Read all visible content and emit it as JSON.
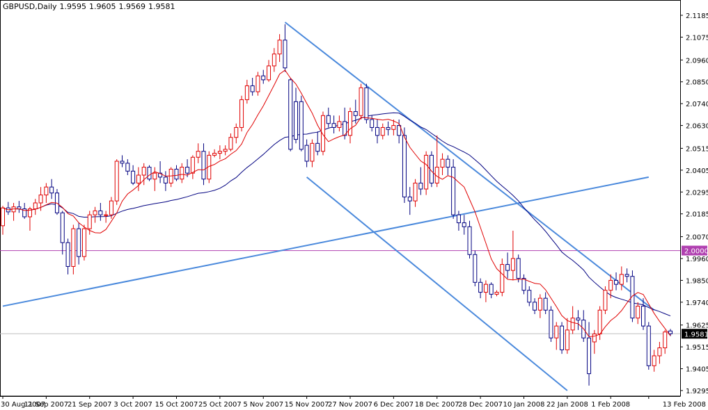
{
  "header": {
    "symbol_timeframe": "GBPUSD,Daily",
    "ohlc": [
      "1.9595",
      "1.9605",
      "1.9569",
      "1.9581"
    ]
  },
  "colors": {
    "bull_candle": "#e00000",
    "bear_candle": "#000080",
    "fast_ma": "#e00000",
    "slow_ma": "#000080",
    "trendline": "#4a89dc",
    "level_line": "#b040b0",
    "price_marker_bg": "#000000",
    "level_marker_bg": "#b040b0",
    "gridline": "#c0c0c0"
  },
  "chart_data": {
    "type": "candlestick",
    "ylim": [
      1.9295,
      2.1185
    ],
    "y_ticks": [
      "2.1185",
      "2.1075",
      "2.0960",
      "2.0850",
      "2.0740",
      "2.0630",
      "2.0515",
      "2.0405",
      "2.0295",
      "2.0185",
      "2.0070",
      "1.9960",
      "1.9850",
      "1.9740",
      "1.9625",
      "1.9515",
      "1.9405",
      "1.9295"
    ],
    "x_ticks": [
      "30 Aug 2007",
      "11 Sep 2007",
      "21 Sep 2007",
      "3 Oct 2007",
      "15 Oct 2007",
      "25 Oct 2007",
      "5 Nov 2007",
      "15 Nov 2007",
      "27 Nov 2007",
      "6 Dec 2007",
      "18 Dec 2007",
      "28 Dec 2007",
      "10 Jan 2008",
      "22 Jan 2008",
      "1 Feb 2008",
      "13 Feb 2008"
    ],
    "x_tick_index": [
      0,
      8,
      16,
      24,
      32,
      40,
      48,
      56,
      64,
      72,
      80,
      88,
      96,
      104,
      112,
      119
    ],
    "last_price": "1.9581",
    "level": "2.0000",
    "candles": [
      [
        2.0125,
        2.0225,
        2.008,
        2.0215
      ],
      [
        2.0215,
        2.0245,
        2.018,
        2.0195
      ],
      [
        2.0195,
        2.024,
        2.015,
        2.022
      ],
      [
        2.022,
        2.025,
        2.019,
        2.021
      ],
      [
        2.021,
        2.024,
        2.016,
        2.017
      ],
      [
        2.017,
        2.022,
        2.01,
        2.021
      ],
      [
        2.021,
        2.026,
        2.018,
        2.024
      ],
      [
        2.024,
        2.032,
        2.02,
        2.028
      ],
      [
        2.028,
        2.034,
        2.024,
        2.032
      ],
      [
        2.032,
        2.036,
        2.026,
        2.029
      ],
      [
        2.029,
        2.031,
        2.018,
        2.019
      ],
      [
        2.019,
        2.02,
        1.998,
        2.004
      ],
      [
        2.004,
        2.006,
        1.988,
        1.992
      ],
      [
        1.992,
        2.013,
        1.988,
        2.011
      ],
      [
        2.011,
        2.014,
        1.993,
        1.997
      ],
      [
        1.997,
        2.013,
        1.995,
        2.011
      ],
      [
        2.011,
        2.02,
        2.008,
        2.018
      ],
      [
        2.018,
        2.022,
        2.014,
        2.02
      ],
      [
        2.02,
        2.024,
        2.015,
        2.018
      ],
      [
        2.018,
        2.02,
        2.014,
        2.018
      ],
      [
        2.018,
        2.027,
        2.016,
        2.025
      ],
      [
        2.025,
        2.046,
        2.023,
        2.045
      ],
      [
        2.045,
        2.048,
        2.042,
        2.044
      ],
      [
        2.044,
        2.046,
        2.038,
        2.04
      ],
      [
        2.04,
        2.043,
        2.033,
        2.034
      ],
      [
        2.034,
        2.042,
        2.03,
        2.038
      ],
      [
        2.038,
        2.044,
        2.033,
        2.042
      ],
      [
        2.042,
        2.043,
        2.035,
        2.036
      ],
      [
        2.036,
        2.042,
        2.03,
        2.039
      ],
      [
        2.039,
        2.045,
        2.034,
        2.037
      ],
      [
        2.037,
        2.04,
        2.03,
        2.034
      ],
      [
        2.034,
        2.042,
        2.032,
        2.041
      ],
      [
        2.041,
        2.043,
        2.035,
        2.036
      ],
      [
        2.036,
        2.044,
        2.034,
        2.042
      ],
      [
        2.042,
        2.046,
        2.037,
        2.039
      ],
      [
        2.039,
        2.048,
        2.036,
        2.047
      ],
      [
        2.047,
        2.054,
        2.044,
        2.05
      ],
      [
        2.05,
        2.054,
        2.033,
        2.036
      ],
      [
        2.036,
        2.05,
        2.034,
        2.048
      ],
      [
        2.048,
        2.051,
        2.047,
        2.049
      ],
      [
        2.049,
        2.053,
        2.046,
        2.05
      ],
      [
        2.05,
        2.053,
        2.048,
        2.051
      ],
      [
        2.051,
        2.059,
        2.05,
        2.057
      ],
      [
        2.057,
        2.064,
        2.054,
        2.062
      ],
      [
        2.062,
        2.078,
        2.06,
        2.076
      ],
      [
        2.076,
        2.086,
        2.074,
        2.083
      ],
      [
        2.083,
        2.087,
        2.078,
        2.08
      ],
      [
        2.08,
        2.09,
        2.078,
        2.088
      ],
      [
        2.088,
        2.091,
        2.084,
        2.086
      ],
      [
        2.086,
        2.096,
        2.085,
        2.093
      ],
      [
        2.093,
        2.102,
        2.09,
        2.099
      ],
      [
        2.099,
        2.109,
        2.095,
        2.106
      ],
      [
        2.106,
        2.114,
        2.09,
        2.092
      ],
      [
        2.086,
        2.087,
        2.05,
        2.051
      ],
      [
        2.075,
        2.082,
        2.054,
        2.056
      ],
      [
        2.075,
        2.078,
        2.05,
        2.051
      ],
      [
        2.053,
        2.056,
        2.042,
        2.045
      ],
      [
        2.045,
        2.056,
        2.042,
        2.054
      ],
      [
        2.054,
        2.06,
        2.048,
        2.05
      ],
      [
        2.05,
        2.07,
        2.048,
        2.068
      ],
      [
        2.068,
        2.072,
        2.062,
        2.064
      ],
      [
        2.064,
        2.068,
        2.059,
        2.062
      ],
      [
        2.062,
        2.068,
        2.06,
        2.065
      ],
      [
        2.065,
        2.072,
        2.056,
        2.058
      ],
      [
        2.058,
        2.072,
        2.054,
        2.07
      ],
      [
        2.07,
        2.076,
        2.064,
        2.068
      ],
      [
        2.068,
        2.084,
        2.066,
        2.082
      ],
      [
        2.082,
        2.084,
        2.064,
        2.066
      ],
      [
        2.066,
        2.068,
        2.06,
        2.062
      ],
      [
        2.062,
        2.066,
        2.054,
        2.058
      ],
      [
        2.058,
        2.064,
        2.056,
        2.062
      ],
      [
        2.062,
        2.065,
        2.058,
        2.061
      ],
      [
        2.061,
        2.066,
        2.058,
        2.063
      ],
      [
        2.063,
        2.066,
        2.054,
        2.058
      ],
      [
        2.058,
        2.062,
        2.024,
        2.027
      ],
      [
        2.027,
        2.032,
        2.018,
        2.025
      ],
      [
        2.025,
        2.036,
        2.022,
        2.034
      ],
      [
        2.034,
        2.042,
        2.028,
        2.031
      ],
      [
        2.031,
        2.05,
        2.028,
        2.048
      ],
      [
        2.048,
        2.05,
        2.032,
        2.034
      ],
      [
        2.034,
        2.058,
        2.032,
        2.042
      ],
      [
        2.042,
        2.049,
        2.038,
        2.046
      ],
      [
        2.046,
        2.048,
        2.038,
        2.042
      ],
      [
        2.042,
        2.046,
        2.016,
        2.018
      ],
      [
        2.018,
        2.02,
        2.01,
        2.014
      ],
      [
        2.014,
        2.018,
        2.008,
        2.012
      ],
      [
        2.012,
        2.015,
        1.996,
        1.998
      ],
      [
        1.998,
        2.0,
        1.982,
        1.984
      ],
      [
        1.984,
        1.986,
        1.976,
        1.979
      ],
      [
        1.979,
        1.985,
        1.974,
        1.983
      ],
      [
        1.983,
        1.984,
        1.976,
        1.978
      ],
      [
        1.978,
        1.98,
        1.977,
        1.979
      ],
      [
        1.979,
        1.996,
        1.977,
        1.993
      ],
      [
        1.993,
        1.999,
        1.986,
        1.99
      ],
      [
        1.99,
        2.01,
        1.985,
        1.996
      ],
      [
        1.996,
        1.998,
        1.984,
        1.986
      ],
      [
        1.986,
        1.988,
        1.978,
        1.98
      ],
      [
        1.98,
        1.982,
        1.972,
        1.974
      ],
      [
        1.974,
        1.976,
        1.968,
        1.97
      ],
      [
        1.97,
        1.978,
        1.966,
        1.976
      ],
      [
        1.976,
        1.979,
        1.968,
        1.97
      ],
      [
        1.97,
        1.972,
        1.954,
        1.956
      ],
      [
        1.956,
        1.964,
        1.95,
        1.962
      ],
      [
        1.962,
        1.964,
        1.948,
        1.95
      ],
      [
        1.95,
        1.966,
        1.948,
        1.96
      ],
      [
        1.96,
        1.972,
        1.958,
        1.966
      ],
      [
        1.966,
        1.97,
        1.96,
        1.965
      ],
      [
        1.965,
        1.97,
        1.954,
        1.956
      ],
      [
        1.956,
        1.964,
        1.932,
        1.938
      ],
      [
        1.954,
        1.96,
        1.948,
        1.958
      ],
      [
        1.958,
        1.972,
        1.955,
        1.97
      ],
      [
        1.97,
        1.982,
        1.968,
        1.98
      ],
      [
        1.98,
        1.988,
        1.976,
        1.985
      ],
      [
        1.985,
        1.989,
        1.98,
        1.983
      ],
      [
        1.983,
        1.992,
        1.98,
        1.988
      ],
      [
        1.988,
        1.991,
        1.984,
        1.987
      ],
      [
        1.987,
        1.99,
        1.964,
        1.966
      ],
      [
        1.966,
        1.974,
        1.963,
        1.972
      ],
      [
        1.972,
        1.976,
        1.96,
        1.962
      ],
      [
        1.962,
        1.964,
        1.94,
        1.942
      ],
      [
        1.942,
        1.95,
        1.939,
        1.947
      ],
      [
        1.947,
        1.954,
        1.943,
        1.951
      ],
      [
        1.951,
        1.96,
        1.948,
        1.959
      ],
      [
        1.9595,
        1.9605,
        1.9569,
        1.9581
      ]
    ]
  }
}
